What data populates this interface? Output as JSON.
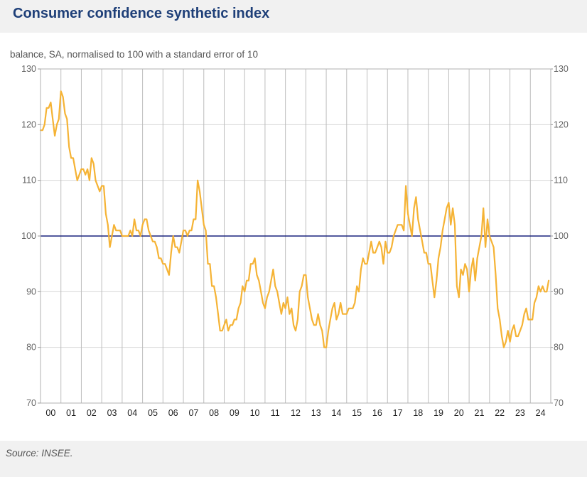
{
  "title": "Consumer confidence synthetic index",
  "source": "Source: INSEE.",
  "chart_data": {
    "type": "line",
    "title": "Consumer confidence synthetic index",
    "ylabel": "balance, SA, normalised to 100 with a standard error of 10",
    "ylim": [
      70,
      130
    ],
    "yticks": [
      70,
      80,
      90,
      100,
      110,
      120,
      130
    ],
    "x_categories": [
      "00",
      "01",
      "02",
      "03",
      "04",
      "05",
      "06",
      "07",
      "08",
      "09",
      "10",
      "11",
      "12",
      "13",
      "14",
      "15",
      "16",
      "17",
      "18",
      "19",
      "20",
      "21",
      "22",
      "23",
      "24"
    ],
    "grid": true,
    "y_axis_both_sides": true,
    "reference_line": {
      "value": 100,
      "color": "#1a237e"
    },
    "series_color": "#f5b335",
    "series": [
      {
        "points": [
          [
            2000.0,
            119
          ],
          [
            2000.1,
            119
          ],
          [
            2000.2,
            120
          ],
          [
            2000.3,
            123
          ],
          [
            2000.4,
            123
          ],
          [
            2000.5,
            124
          ],
          [
            2000.6,
            121
          ],
          [
            2000.7,
            118
          ],
          [
            2000.8,
            120
          ],
          [
            2000.9,
            121
          ],
          [
            2001.0,
            126
          ],
          [
            2001.1,
            125
          ],
          [
            2001.2,
            122
          ],
          [
            2001.3,
            121
          ],
          [
            2001.4,
            116
          ],
          [
            2001.5,
            114
          ],
          [
            2001.6,
            114
          ],
          [
            2001.7,
            112
          ],
          [
            2001.8,
            110
          ],
          [
            2001.9,
            111
          ],
          [
            2002.0,
            112
          ],
          [
            2002.1,
            112
          ],
          [
            2002.2,
            111
          ],
          [
            2002.3,
            112
          ],
          [
            2002.4,
            110
          ],
          [
            2002.5,
            114
          ],
          [
            2002.6,
            113
          ],
          [
            2002.7,
            110
          ],
          [
            2002.8,
            109
          ],
          [
            2002.9,
            108
          ],
          [
            2003.0,
            109
          ],
          [
            2003.1,
            109
          ],
          [
            2003.2,
            104
          ],
          [
            2003.3,
            102
          ],
          [
            2003.4,
            98
          ],
          [
            2003.5,
            100
          ],
          [
            2003.6,
            102
          ],
          [
            2003.7,
            101
          ],
          [
            2003.8,
            101
          ],
          [
            2003.9,
            101
          ],
          [
            2004.0,
            100
          ],
          [
            2004.1,
            100
          ],
          [
            2004.2,
            100
          ],
          [
            2004.3,
            100
          ],
          [
            2004.4,
            101
          ],
          [
            2004.5,
            100
          ],
          [
            2004.6,
            103
          ],
          [
            2004.7,
            101
          ],
          [
            2004.8,
            101
          ],
          [
            2004.9,
            100
          ],
          [
            2005.0,
            102
          ],
          [
            2005.1,
            103
          ],
          [
            2005.2,
            103
          ],
          [
            2005.3,
            101
          ],
          [
            2005.4,
            100
          ],
          [
            2005.5,
            99
          ],
          [
            2005.6,
            99
          ],
          [
            2005.7,
            98
          ],
          [
            2005.8,
            96
          ],
          [
            2005.9,
            96
          ],
          [
            2006.0,
            95
          ],
          [
            2006.1,
            95
          ],
          [
            2006.2,
            94
          ],
          [
            2006.3,
            93
          ],
          [
            2006.4,
            97
          ],
          [
            2006.5,
            100
          ],
          [
            2006.6,
            98
          ],
          [
            2006.7,
            98
          ],
          [
            2006.8,
            97
          ],
          [
            2006.9,
            99
          ],
          [
            2007.0,
            101
          ],
          [
            2007.1,
            101
          ],
          [
            2007.2,
            100
          ],
          [
            2007.3,
            101
          ],
          [
            2007.4,
            101
          ],
          [
            2007.5,
            103
          ],
          [
            2007.6,
            103
          ],
          [
            2007.7,
            110
          ],
          [
            2007.8,
            108
          ],
          [
            2007.9,
            105
          ],
          [
            2008.0,
            102
          ],
          [
            2008.1,
            101
          ],
          [
            2008.2,
            95
          ],
          [
            2008.3,
            95
          ],
          [
            2008.4,
            91
          ],
          [
            2008.5,
            91
          ],
          [
            2008.6,
            89
          ],
          [
            2008.7,
            86
          ],
          [
            2008.8,
            83
          ],
          [
            2008.9,
            83
          ],
          [
            2009.0,
            84
          ],
          [
            2009.1,
            85
          ],
          [
            2009.2,
            83
          ],
          [
            2009.3,
            84
          ],
          [
            2009.4,
            84
          ],
          [
            2009.5,
            85
          ],
          [
            2009.6,
            85
          ],
          [
            2009.7,
            87
          ],
          [
            2009.8,
            88
          ],
          [
            2009.9,
            91
          ],
          [
            2010.0,
            90
          ],
          [
            2010.1,
            92
          ],
          [
            2010.2,
            92
          ],
          [
            2010.3,
            95
          ],
          [
            2010.4,
            95
          ],
          [
            2010.5,
            96
          ],
          [
            2010.6,
            93
          ],
          [
            2010.7,
            92
          ],
          [
            2010.8,
            90
          ],
          [
            2010.9,
            88
          ],
          [
            2011.0,
            87
          ],
          [
            2011.1,
            89
          ],
          [
            2011.2,
            90
          ],
          [
            2011.3,
            92
          ],
          [
            2011.4,
            94
          ],
          [
            2011.5,
            91
          ],
          [
            2011.6,
            90
          ],
          [
            2011.7,
            88
          ],
          [
            2011.8,
            86
          ],
          [
            2011.9,
            88
          ],
          [
            2012.0,
            87
          ],
          [
            2012.1,
            89
          ],
          [
            2012.2,
            86
          ],
          [
            2012.3,
            87
          ],
          [
            2012.4,
            84
          ],
          [
            2012.5,
            83
          ],
          [
            2012.6,
            85
          ],
          [
            2012.7,
            90
          ],
          [
            2012.8,
            91
          ],
          [
            2012.9,
            93
          ],
          [
            2013.0,
            93
          ],
          [
            2013.1,
            89
          ],
          [
            2013.2,
            87
          ],
          [
            2013.3,
            85
          ],
          [
            2013.4,
            84
          ],
          [
            2013.5,
            84
          ],
          [
            2013.6,
            86
          ],
          [
            2013.7,
            84
          ],
          [
            2013.8,
            83
          ],
          [
            2013.9,
            80
          ],
          [
            2014.0,
            80
          ],
          [
            2014.1,
            83
          ],
          [
            2014.2,
            85
          ],
          [
            2014.3,
            87
          ],
          [
            2014.4,
            88
          ],
          [
            2014.5,
            85
          ],
          [
            2014.6,
            86
          ],
          [
            2014.7,
            88
          ],
          [
            2014.8,
            86
          ],
          [
            2014.9,
            86
          ],
          [
            2015.0,
            86
          ],
          [
            2015.1,
            87
          ],
          [
            2015.2,
            87
          ],
          [
            2015.3,
            87
          ],
          [
            2015.4,
            88
          ],
          [
            2015.5,
            91
          ],
          [
            2015.6,
            90
          ],
          [
            2015.7,
            94
          ],
          [
            2015.8,
            96
          ],
          [
            2015.9,
            95
          ],
          [
            2016.0,
            95
          ],
          [
            2016.1,
            97
          ],
          [
            2016.2,
            99
          ],
          [
            2016.3,
            97
          ],
          [
            2016.4,
            97
          ],
          [
            2016.5,
            98
          ],
          [
            2016.6,
            99
          ],
          [
            2016.7,
            98
          ],
          [
            2016.8,
            95
          ],
          [
            2016.9,
            99
          ],
          [
            2017.0,
            97
          ],
          [
            2017.1,
            97
          ],
          [
            2017.2,
            98
          ],
          [
            2017.3,
            100
          ],
          [
            2017.4,
            101
          ],
          [
            2017.5,
            102
          ],
          [
            2017.6,
            102
          ],
          [
            2017.7,
            102
          ],
          [
            2017.8,
            101
          ],
          [
            2017.9,
            109
          ],
          [
            2018.0,
            104
          ],
          [
            2018.1,
            102
          ],
          [
            2018.2,
            100
          ],
          [
            2018.3,
            105
          ],
          [
            2018.4,
            107
          ],
          [
            2018.5,
            103
          ],
          [
            2018.6,
            101
          ],
          [
            2018.7,
            99
          ],
          [
            2018.8,
            97
          ],
          [
            2018.9,
            97
          ],
          [
            2019.0,
            95
          ],
          [
            2019.1,
            95
          ],
          [
            2019.2,
            92
          ],
          [
            2019.3,
            89
          ],
          [
            2019.4,
            92
          ],
          [
            2019.5,
            96
          ],
          [
            2019.6,
            98
          ],
          [
            2019.7,
            101
          ],
          [
            2019.8,
            103
          ],
          [
            2019.9,
            105
          ],
          [
            2020.0,
            106
          ],
          [
            2020.1,
            102
          ],
          [
            2020.2,
            105
          ],
          [
            2020.3,
            102
          ],
          [
            2020.4,
            91
          ],
          [
            2020.5,
            89
          ],
          [
            2020.6,
            94
          ],
          [
            2020.7,
            93
          ],
          [
            2020.8,
            95
          ],
          [
            2020.9,
            94
          ],
          [
            2021.0,
            90
          ],
          [
            2021.1,
            94
          ],
          [
            2021.2,
            96
          ],
          [
            2021.3,
            92
          ],
          [
            2021.4,
            96
          ],
          [
            2021.5,
            98
          ],
          [
            2021.6,
            100
          ],
          [
            2021.7,
            105
          ],
          [
            2021.8,
            98
          ],
          [
            2021.9,
            103
          ],
          [
            2022.0,
            100
          ],
          [
            2022.1,
            99
          ],
          [
            2022.2,
            98
          ],
          [
            2022.3,
            93
          ],
          [
            2022.4,
            87
          ],
          [
            2022.5,
            85
          ],
          [
            2022.6,
            82
          ],
          [
            2022.7,
            80
          ],
          [
            2022.8,
            81
          ],
          [
            2022.9,
            83
          ],
          [
            2023.0,
            81
          ],
          [
            2023.1,
            83
          ],
          [
            2023.2,
            84
          ],
          [
            2023.3,
            82
          ],
          [
            2023.4,
            82
          ],
          [
            2023.5,
            83
          ],
          [
            2023.6,
            84
          ],
          [
            2023.7,
            86
          ],
          [
            2023.8,
            87
          ],
          [
            2023.9,
            85
          ],
          [
            2024.0,
            85
          ],
          [
            2024.1,
            85
          ],
          [
            2024.2,
            88
          ],
          [
            2024.3,
            89
          ],
          [
            2024.4,
            91
          ],
          [
            2024.5,
            90
          ],
          [
            2024.6,
            91
          ],
          [
            2024.7,
            90
          ],
          [
            2024.8,
            90
          ],
          [
            2024.9,
            92
          ]
        ]
      }
    ]
  }
}
